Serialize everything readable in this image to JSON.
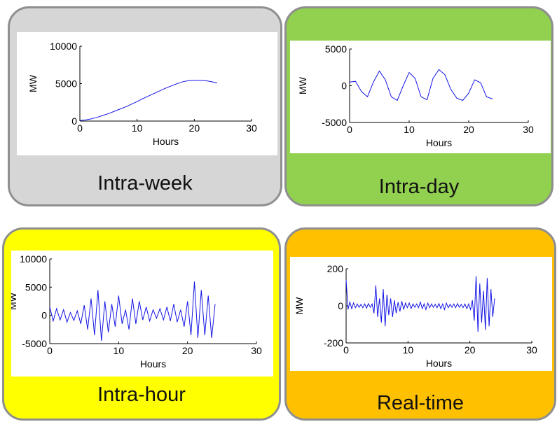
{
  "colors": {
    "line": "#1414e6",
    "panel_border": "#8f8f8f"
  },
  "chart_data": [
    {
      "id": "intra-week",
      "type": "line",
      "caption": "Intra-week",
      "panel_color": "#d6d6d6",
      "xlabel": "Hours",
      "ylabel": "MW",
      "xlim": [
        0,
        30
      ],
      "ylim": [
        0,
        10000
      ],
      "xticks": [
        0,
        10,
        20,
        30
      ],
      "yticks": [
        0,
        5000,
        10000
      ],
      "grid": false,
      "series": [
        {
          "x": [
            0,
            1,
            2,
            3,
            4,
            5,
            6,
            7,
            8,
            9,
            10,
            11,
            12,
            13,
            14,
            15,
            16,
            17,
            18,
            19,
            20,
            21,
            22,
            23,
            24
          ],
          "y": [
            80,
            150,
            300,
            500,
            750,
            1000,
            1300,
            1600,
            1900,
            2250,
            2600,
            3000,
            3350,
            3700,
            4050,
            4400,
            4700,
            5000,
            5250,
            5400,
            5450,
            5450,
            5400,
            5250,
            5100
          ]
        }
      ]
    },
    {
      "id": "intra-day",
      "type": "line",
      "caption": "Intra-day",
      "panel_color": "#92d050",
      "xlabel": "Hours",
      "ylabel": "MW",
      "xlim": [
        0,
        30
      ],
      "ylim": [
        -5000,
        5000
      ],
      "xticks": [
        0,
        10,
        20,
        30
      ],
      "yticks": [
        -5000,
        0,
        5000
      ],
      "grid": false,
      "series": [
        {
          "x": [
            0,
            1,
            2,
            3,
            4,
            5,
            6,
            7,
            8,
            9,
            10,
            11,
            12,
            13,
            14,
            15,
            16,
            17,
            18,
            19,
            20,
            21,
            22,
            23,
            24
          ],
          "y": [
            500,
            600,
            -800,
            -1500,
            500,
            2000,
            800,
            -1500,
            -2000,
            0,
            1800,
            1000,
            -1500,
            -1900,
            1000,
            2200,
            1500,
            -500,
            -1700,
            -2000,
            -1000,
            800,
            400,
            -1500,
            -1800
          ]
        }
      ]
    },
    {
      "id": "intra-hour",
      "type": "line",
      "caption": "Intra-hour",
      "panel_color": "#ffff00",
      "xlabel": "Hours",
      "ylabel": "MW",
      "xlim": [
        0,
        30
      ],
      "ylim": [
        -5000,
        10000
      ],
      "xticks": [
        0,
        10,
        20,
        30
      ],
      "yticks": [
        -5000,
        0,
        5000,
        10000
      ],
      "grid": false,
      "series": [
        {
          "x": [
            0,
            0.5,
            1,
            1.5,
            2,
            2.5,
            3,
            3.5,
            4,
            4.5,
            5,
            5.5,
            6,
            6.5,
            7,
            7.5,
            8,
            8.5,
            9,
            9.5,
            10,
            10.5,
            11,
            11.5,
            12,
            12.5,
            13,
            13.5,
            14,
            14.5,
            15,
            15.5,
            16,
            16.5,
            17,
            17.5,
            18,
            18.5,
            19,
            19.5,
            20,
            20.5,
            21,
            21.5,
            22,
            22.5,
            23,
            23.5,
            24
          ],
          "y": [
            1500,
            -1000,
            1200,
            -800,
            1000,
            -1200,
            500,
            -900,
            800,
            -1500,
            1800,
            -2500,
            3000,
            -3500,
            4500,
            -4500,
            2500,
            -3000,
            2000,
            -2000,
            3500,
            -1500,
            1000,
            -2500,
            3000,
            -1500,
            2500,
            -800,
            1500,
            -1000,
            1000,
            -500,
            1200,
            -800,
            1500,
            -1000,
            2000,
            -1200,
            1000,
            -2000,
            2500,
            -3500,
            6000,
            -4000,
            4500,
            -3500,
            3500,
            -4000,
            2000
          ]
        }
      ]
    },
    {
      "id": "real-time",
      "type": "line",
      "caption": "Real-time",
      "panel_color": "#ffc000",
      "xlabel": "Hours",
      "ylabel": "MW",
      "xlim": [
        0,
        30
      ],
      "ylim": [
        -200,
        200
      ],
      "xticks": [
        0,
        10,
        20,
        30
      ],
      "yticks": [
        -200,
        0,
        200
      ],
      "grid": false,
      "series": [
        {
          "x": [
            0,
            0.3,
            0.6,
            0.9,
            1.2,
            1.5,
            1.8,
            2.1,
            2.4,
            2.7,
            3,
            3.3,
            3.6,
            3.9,
            4.2,
            4.5,
            4.8,
            5.1,
            5.4,
            5.7,
            6,
            6.3,
            6.6,
            6.9,
            7.2,
            7.5,
            7.8,
            8.1,
            8.4,
            8.7,
            9,
            9.3,
            9.6,
            9.9,
            10.2,
            10.5,
            10.8,
            11.1,
            11.4,
            11.7,
            12,
            12.3,
            12.6,
            12.9,
            13.2,
            13.5,
            13.8,
            14.1,
            14.4,
            14.7,
            15,
            15.3,
            15.6,
            15.9,
            16.2,
            16.5,
            16.8,
            17.1,
            17.4,
            17.7,
            18,
            18.3,
            18.6,
            18.9,
            19.2,
            19.5,
            19.8,
            20.1,
            20.4,
            20.7,
            21,
            21.3,
            21.6,
            21.9,
            22.2,
            22.5,
            22.8,
            23.1,
            23.4,
            23.7,
            24
          ],
          "y": [
            140,
            -20,
            20,
            -15,
            15,
            -10,
            10,
            -8,
            8,
            -10,
            10,
            -12,
            12,
            -8,
            10,
            -40,
            110,
            -60,
            40,
            -90,
            90,
            -110,
            60,
            -50,
            40,
            -60,
            30,
            -40,
            20,
            -30,
            25,
            -20,
            15,
            -10,
            15,
            -15,
            10,
            -8,
            10,
            -10,
            20,
            -15,
            10,
            -20,
            15,
            -10,
            10,
            -8,
            8,
            -10,
            12,
            -15,
            10,
            -20,
            15,
            -10,
            8,
            -8,
            10,
            -10,
            12,
            -8,
            8,
            -10,
            10,
            -15,
            10,
            -20,
            30,
            -80,
            160,
            -140,
            120,
            -90,
            80,
            -130,
            150,
            -110,
            90,
            -60,
            40
          ]
        }
      ]
    }
  ]
}
